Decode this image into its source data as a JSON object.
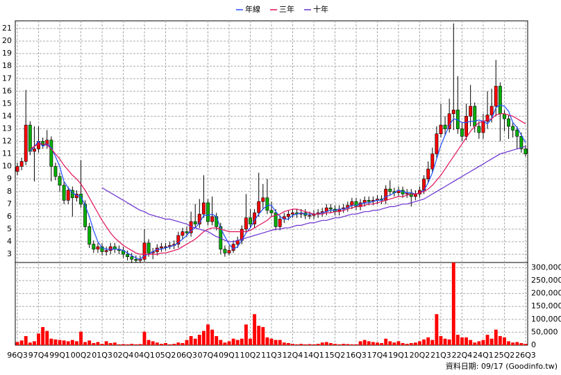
{
  "chart_data": {
    "type": "candlestick",
    "categories": [
      "96Q3",
      null,
      null,
      null,
      null,
      "97Q4",
      null,
      null,
      null,
      null,
      "99Q1",
      null,
      null,
      null,
      null,
      "00Q2",
      null,
      null,
      null,
      null,
      "01Q3",
      null,
      null,
      null,
      null,
      "02Q4",
      null,
      null,
      null,
      null,
      "04Q1",
      null,
      null,
      null,
      null,
      "05Q2",
      null,
      null,
      null,
      null,
      "06Q3",
      null,
      null,
      null,
      null,
      "07Q4",
      null,
      null,
      null,
      null,
      "09Q1",
      null,
      null,
      null,
      null,
      "10Q2",
      null,
      null,
      null,
      null,
      "11Q3",
      null,
      null,
      null,
      null,
      "12Q4",
      null,
      null,
      null,
      null,
      "14Q1",
      null,
      null,
      null,
      null,
      "15Q2",
      null,
      null,
      null,
      null,
      "16Q3",
      null,
      null,
      null,
      null,
      "17Q4",
      null,
      null,
      null,
      null,
      "19Q1",
      null,
      null,
      null,
      null,
      "20Q2",
      null,
      null,
      null,
      null,
      "21Q3",
      null,
      null,
      null,
      null,
      "22Q4",
      null,
      null,
      null,
      null,
      "24Q1",
      null,
      null,
      null,
      null,
      "25Q2",
      null,
      null,
      null,
      null,
      "26Q3"
    ],
    "open": [
      9.6,
      10.0,
      10.4,
      13.3,
      11.2,
      11.4,
      12.0,
      11.7,
      12.1,
      10.0,
      9.2,
      8.5,
      7.3,
      8.1,
      7.5,
      7.8,
      7.0,
      5.2,
      3.8,
      3.4,
      3.6,
      3.2,
      3.3,
      3.6,
      3.4,
      3.3,
      3.0,
      2.8,
      2.6,
      2.5,
      2.6,
      3.9,
      3.1,
      3.2,
      3.5,
      3.6,
      3.6,
      3.7,
      3.8,
      4.5,
      4.8,
      4.7,
      5.6,
      5.4,
      6.2,
      7.1,
      5.6,
      6.0,
      5.2,
      3.4,
      3.1,
      3.3,
      3.8,
      4.1,
      5.0,
      5.9,
      5.4,
      6.3,
      7.2,
      7.5,
      6.5,
      6.3,
      5.2,
      5.8,
      6.0,
      6.2,
      6.3,
      6.2,
      6.3,
      6.1,
      6.1,
      6.2,
      6.3,
      6.4,
      6.7,
      6.6,
      6.4,
      6.6,
      6.7,
      6.9,
      7.2,
      6.8,
      7.1,
      7.3,
      7.2,
      7.3,
      7.4,
      7.3,
      8.2,
      8.0,
      7.9,
      8.1,
      7.8,
      7.9,
      7.6,
      7.8,
      8.1,
      9.0,
      9.8,
      11.0,
      12.6,
      13.3,
      13.0,
      14.2,
      14.5,
      13.0,
      12.4,
      14.0,
      14.8,
      13.2,
      12.7,
      13.6,
      14.1,
      14.8,
      16.4,
      14.2,
      13.8,
      13.2,
      12.9,
      12.4,
      11.4
    ],
    "high": [
      10.3,
      10.7,
      16.1,
      13.6,
      13.2,
      13.2,
      12.3,
      12.9,
      12.4,
      10.3,
      9.5,
      8.8,
      8.4,
      8.4,
      8.1,
      10.5,
      7.3,
      5.5,
      4.1,
      3.9,
      3.9,
      3.6,
      3.9,
      3.9,
      3.7,
      3.6,
      3.3,
      3.1,
      2.9,
      2.9,
      5.0,
      4.2,
      3.5,
      3.8,
      3.9,
      3.9,
      4.0,
      4.1,
      4.8,
      5.1,
      5.2,
      6.4,
      7.0,
      7.4,
      9.3,
      7.4,
      7.6,
      6.3,
      5.5,
      3.7,
      3.7,
      4.1,
      4.4,
      5.3,
      7.8,
      6.6,
      6.6,
      9.5,
      8.6,
      9.0,
      7.2,
      6.6,
      6.1,
      6.3,
      6.5,
      6.6,
      6.6,
      6.6,
      6.6,
      6.4,
      6.5,
      6.6,
      6.7,
      7.0,
      7.0,
      6.9,
      6.9,
      7.0,
      7.2,
      7.5,
      7.5,
      7.4,
      7.6,
      7.6,
      7.6,
      7.7,
      7.7,
      8.5,
      8.9,
      8.3,
      8.4,
      8.4,
      8.2,
      8.2,
      8.1,
      8.4,
      9.3,
      10.4,
      11.5,
      13.2,
      15.0,
      14.0,
      15.4,
      21.4,
      17.2,
      13.5,
      15.0,
      16.5,
      15.1,
      13.6,
      14.2,
      16.0,
      16.2,
      18.5,
      16.7,
      14.5,
      14.1,
      13.5,
      13.2,
      12.7,
      11.7
    ],
    "low": [
      9.3,
      9.7,
      10.1,
      10.9,
      8.8,
      11.1,
      11.4,
      11.4,
      8.8,
      8.9,
      8.0,
      7.0,
      7.0,
      6.0,
      7.2,
      6.7,
      4.9,
      3.5,
      3.1,
      3.1,
      2.9,
      2.9,
      3.0,
      3.1,
      3.0,
      2.7,
      2.5,
      2.3,
      2.3,
      2.3,
      2.4,
      2.8,
      2.6,
      2.9,
      3.2,
      3.3,
      3.4,
      3.4,
      3.5,
      4.2,
      4.4,
      4.4,
      5.1,
      5.1,
      5.9,
      5.3,
      5.3,
      4.9,
      3.0,
      2.8,
      2.9,
      3.1,
      3.5,
      3.8,
      4.7,
      5.1,
      5.1,
      6.0,
      6.6,
      6.2,
      6.0,
      4.9,
      4.9,
      5.5,
      5.7,
      5.9,
      5.9,
      5.9,
      5.8,
      5.8,
      5.8,
      5.9,
      6.0,
      6.1,
      6.3,
      6.1,
      6.1,
      6.3,
      6.4,
      6.6,
      6.5,
      6.5,
      6.8,
      6.9,
      6.9,
      7.0,
      7.0,
      7.0,
      7.7,
      7.6,
      7.6,
      7.5,
      7.5,
      6.8,
      7.3,
      7.5,
      7.8,
      8.7,
      9.5,
      10.7,
      12.3,
      12.5,
      12.7,
      12.9,
      12.6,
      12.0,
      12.1,
      13.2,
      12.7,
      12.2,
      12.2,
      13.0,
      13.5,
      14.0,
      12.0,
      12.8,
      12.2,
      12.3,
      11.4,
      11.1,
      10.8
    ],
    "close": [
      10.0,
      10.4,
      13.3,
      11.2,
      11.4,
      12.0,
      11.7,
      12.1,
      10.0,
      9.2,
      8.5,
      7.3,
      8.1,
      7.5,
      7.8,
      7.0,
      5.2,
      3.8,
      3.4,
      3.6,
      3.2,
      3.3,
      3.6,
      3.4,
      3.3,
      3.0,
      2.8,
      2.6,
      2.5,
      2.6,
      3.9,
      3.1,
      3.2,
      3.5,
      3.6,
      3.6,
      3.7,
      3.8,
      4.5,
      4.8,
      4.7,
      5.6,
      5.4,
      6.2,
      7.1,
      5.6,
      6.0,
      5.2,
      3.4,
      3.1,
      3.3,
      3.8,
      4.1,
      5.0,
      5.9,
      5.4,
      6.3,
      7.2,
      7.5,
      6.5,
      6.3,
      5.2,
      5.8,
      6.0,
      6.2,
      6.3,
      6.2,
      6.3,
      6.1,
      6.1,
      6.2,
      6.3,
      6.4,
      6.7,
      6.6,
      6.4,
      6.6,
      6.7,
      6.9,
      7.2,
      6.8,
      7.1,
      7.3,
      7.2,
      7.3,
      7.4,
      7.3,
      8.2,
      8.0,
      7.9,
      8.1,
      7.8,
      7.9,
      7.6,
      7.8,
      8.1,
      9.0,
      9.8,
      11.0,
      12.6,
      13.3,
      13.0,
      14.2,
      14.5,
      13.0,
      12.4,
      14.0,
      14.8,
      13.2,
      12.7,
      13.6,
      14.1,
      14.8,
      16.4,
      14.2,
      13.8,
      13.2,
      12.9,
      12.4,
      11.4,
      11.0
    ],
    "up_color": "#ff0000",
    "down_color": "#00b000",
    "series": [
      {
        "name": "年線",
        "color": "#1f4fff",
        "values": [
          null,
          null,
          null,
          11.2,
          11.6,
          12.0,
          11.6,
          11.8,
          11.5,
          10.8,
          10.0,
          8.8,
          8.3,
          7.9,
          7.7,
          7.6,
          6.9,
          6.0,
          4.9,
          4.0,
          3.5,
          3.4,
          3.4,
          3.4,
          3.4,
          3.3,
          3.1,
          2.9,
          2.7,
          2.6,
          2.9,
          3.0,
          3.2,
          3.4,
          3.4,
          3.5,
          3.6,
          3.7,
          3.9,
          4.2,
          4.5,
          4.9,
          5.1,
          5.5,
          6.1,
          6.1,
          6.2,
          6.0,
          5.1,
          4.4,
          3.8,
          3.4,
          3.6,
          4.1,
          4.7,
          5.1,
          5.7,
          6.2,
          6.6,
          6.9,
          6.9,
          6.4,
          6.0,
          5.8,
          5.8,
          6.1,
          6.2,
          6.3,
          6.2,
          6.2,
          6.2,
          6.2,
          6.3,
          6.4,
          6.5,
          6.5,
          6.6,
          6.6,
          6.7,
          6.9,
          6.9,
          7.0,
          7.1,
          7.1,
          7.2,
          7.3,
          7.3,
          7.6,
          7.7,
          7.9,
          8.1,
          8.0,
          7.9,
          7.9,
          7.8,
          7.9,
          8.1,
          8.7,
          9.5,
          10.6,
          11.7,
          12.5,
          13.3,
          13.8,
          13.7,
          13.5,
          13.5,
          13.6,
          13.6,
          13.7,
          13.6,
          13.4,
          13.8,
          14.7,
          14.9,
          14.8,
          14.4,
          13.5,
          13.1,
          12.5,
          11.9
        ]
      },
      {
        "name": "三年",
        "color": "#e0105a",
        "values": [
          null,
          null,
          null,
          11.4,
          11.6,
          11.8,
          11.8,
          11.7,
          11.4,
          11.0,
          10.6,
          10.1,
          9.7,
          9.3,
          9.0,
          8.6,
          8.1,
          7.5,
          6.9,
          6.3,
          5.7,
          5.2,
          4.7,
          4.3,
          4.0,
          3.7,
          3.5,
          3.3,
          3.1,
          3.0,
          3.0,
          3.0,
          3.0,
          3.0,
          3.1,
          3.1,
          3.2,
          3.3,
          3.4,
          3.6,
          3.8,
          4.0,
          4.2,
          4.5,
          4.8,
          5.0,
          5.1,
          5.1,
          5.0,
          4.9,
          4.8,
          4.8,
          4.8,
          4.8,
          4.8,
          4.9,
          5.1,
          5.3,
          5.5,
          5.7,
          6.0,
          6.1,
          6.2,
          6.4,
          6.5,
          6.6,
          6.6,
          6.5,
          6.4,
          6.3,
          6.2,
          6.2,
          6.2,
          6.3,
          6.3,
          6.4,
          6.4,
          6.5,
          6.6,
          6.7,
          6.8,
          6.8,
          6.9,
          7.0,
          7.0,
          7.1,
          7.2,
          7.3,
          7.4,
          7.5,
          7.6,
          7.6,
          7.7,
          7.8,
          7.8,
          7.9,
          8.0,
          8.2,
          8.5,
          8.9,
          9.3,
          9.8,
          10.3,
          10.8,
          11.3,
          11.8,
          12.3,
          12.8,
          13.2,
          13.5,
          13.6,
          13.7,
          13.8,
          14.1,
          14.2,
          14.2,
          14.1,
          14.0,
          13.8,
          13.6,
          13.4
        ]
      },
      {
        "name": "十年",
        "color": "#6a2fd0",
        "values": [
          null,
          null,
          null,
          null,
          null,
          null,
          null,
          null,
          null,
          null,
          null,
          null,
          null,
          null,
          null,
          null,
          null,
          null,
          null,
          null,
          8.3,
          8.1,
          7.9,
          7.7,
          7.5,
          7.3,
          7.1,
          6.9,
          6.7,
          6.5,
          6.4,
          6.2,
          6.1,
          6.0,
          5.9,
          5.8,
          5.8,
          5.7,
          5.6,
          5.5,
          5.4,
          5.2,
          5.1,
          5.0,
          4.9,
          4.8,
          4.6,
          4.4,
          4.3,
          4.1,
          4.0,
          4.0,
          4.1,
          4.2,
          4.3,
          4.4,
          4.5,
          4.6,
          4.7,
          4.8,
          4.9,
          5.0,
          5.0,
          5.1,
          5.1,
          5.2,
          5.3,
          5.3,
          5.4,
          5.5,
          5.5,
          5.6,
          5.7,
          5.7,
          5.8,
          5.9,
          5.9,
          6.0,
          6.1,
          6.2,
          6.2,
          6.3,
          6.4,
          6.4,
          6.5,
          6.5,
          6.6,
          6.7,
          6.8,
          6.8,
          6.9,
          7.0,
          7.0,
          7.1,
          7.2,
          7.3,
          7.4,
          7.6,
          7.8,
          8.0,
          8.2,
          8.4,
          8.6,
          8.8,
          9.0,
          9.2,
          9.4,
          9.6,
          9.8,
          10.0,
          10.2,
          10.4,
          10.6,
          10.8,
          11.0,
          11.1,
          11.2,
          11.3,
          11.4,
          11.5,
          11.6
        ]
      }
    ],
    "ylim": [
      2.34,
      21.61
    ],
    "yticks": [
      3,
      4,
      5,
      6,
      7,
      8,
      9,
      10,
      11,
      12,
      13,
      14,
      15,
      16,
      17,
      18,
      19,
      20,
      21
    ],
    "grid": true,
    "volume": {
      "color": "#ff0000",
      "values": [
        12000,
        18000,
        35000,
        10000,
        15000,
        45000,
        70000,
        55000,
        25000,
        22000,
        20000,
        18000,
        15000,
        20000,
        15000,
        52000,
        12000,
        18000,
        8000,
        12000,
        5000,
        15000,
        8000,
        10000,
        3000,
        4000,
        3000,
        5000,
        3000,
        4000,
        52000,
        20000,
        15000,
        10000,
        5000,
        8000,
        3000,
        5000,
        10000,
        8000,
        20000,
        35000,
        25000,
        40000,
        55000,
        80000,
        60000,
        35000,
        20000,
        10000,
        15000,
        25000,
        20000,
        25000,
        80000,
        25000,
        120000,
        75000,
        70000,
        30000,
        25000,
        20000,
        20000,
        10000,
        8000,
        5000,
        3000,
        5000,
        3000,
        4000,
        3000,
        5000,
        10000,
        12000,
        8000,
        5000,
        3000,
        5000,
        4000,
        3000,
        3000,
        15000,
        20000,
        15000,
        12000,
        10000,
        8000,
        25000,
        15000,
        10000,
        15000,
        8000,
        5000,
        8000,
        10000,
        15000,
        22000,
        30000,
        20000,
        120000,
        35000,
        25000,
        22000,
        320000,
        40000,
        30000,
        30000,
        20000,
        10000,
        15000,
        20000,
        40000,
        25000,
        60000,
        35000,
        30000,
        15000,
        10000,
        12000,
        8000,
        5000
      ],
      "ylim": [
        0,
        320000
      ],
      "yticks": [
        0,
        {
          "value": 50000,
          "label": "50,000"
        },
        {
          "value": 100000,
          "label": "100,000"
        },
        {
          "value": 150000,
          "label": "150,000"
        },
        {
          "value": 200000,
          "label": "200,000"
        },
        {
          "value": 250000,
          "label": "250,000"
        },
        {
          "value": 300000,
          "label": "300,000"
        }
      ]
    },
    "source_note": "資料日期: 09/17 (Goodinfo.tw)"
  }
}
